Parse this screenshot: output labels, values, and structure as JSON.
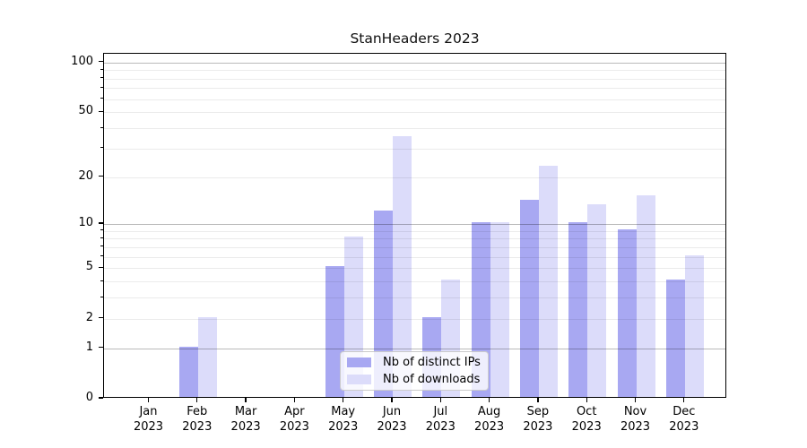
{
  "chart_data": {
    "type": "bar",
    "title": "StanHeaders 2023",
    "categories": [
      "Jan",
      "Feb",
      "Mar",
      "Apr",
      "May",
      "Jun",
      "Jul",
      "Aug",
      "Sep",
      "Oct",
      "Nov",
      "Dec"
    ],
    "year": "2023",
    "series": [
      {
        "name": "Nb of distinct IPs",
        "color": "#a8a8f2",
        "values": [
          0,
          1,
          0,
          0,
          5,
          12,
          2,
          10,
          14,
          10,
          9,
          4
        ]
      },
      {
        "name": "Nb of downloads",
        "color": "#dcdcfa",
        "values": [
          0,
          2,
          0,
          0,
          8,
          35,
          4,
          10,
          23,
          13,
          15,
          6
        ]
      }
    ],
    "yscale": "log10(1+x)",
    "y_ticks": [
      0,
      1,
      2,
      5,
      10,
      20,
      50,
      100
    ],
    "y_minor_ticks": [
      3,
      4,
      6,
      7,
      8,
      9,
      30,
      40,
      60,
      70,
      80,
      90
    ],
    "y_decade_ticks": [
      1,
      10,
      100
    ],
    "ylim": [
      0,
      113
    ],
    "grid": true,
    "legend_position": "lower-center"
  }
}
